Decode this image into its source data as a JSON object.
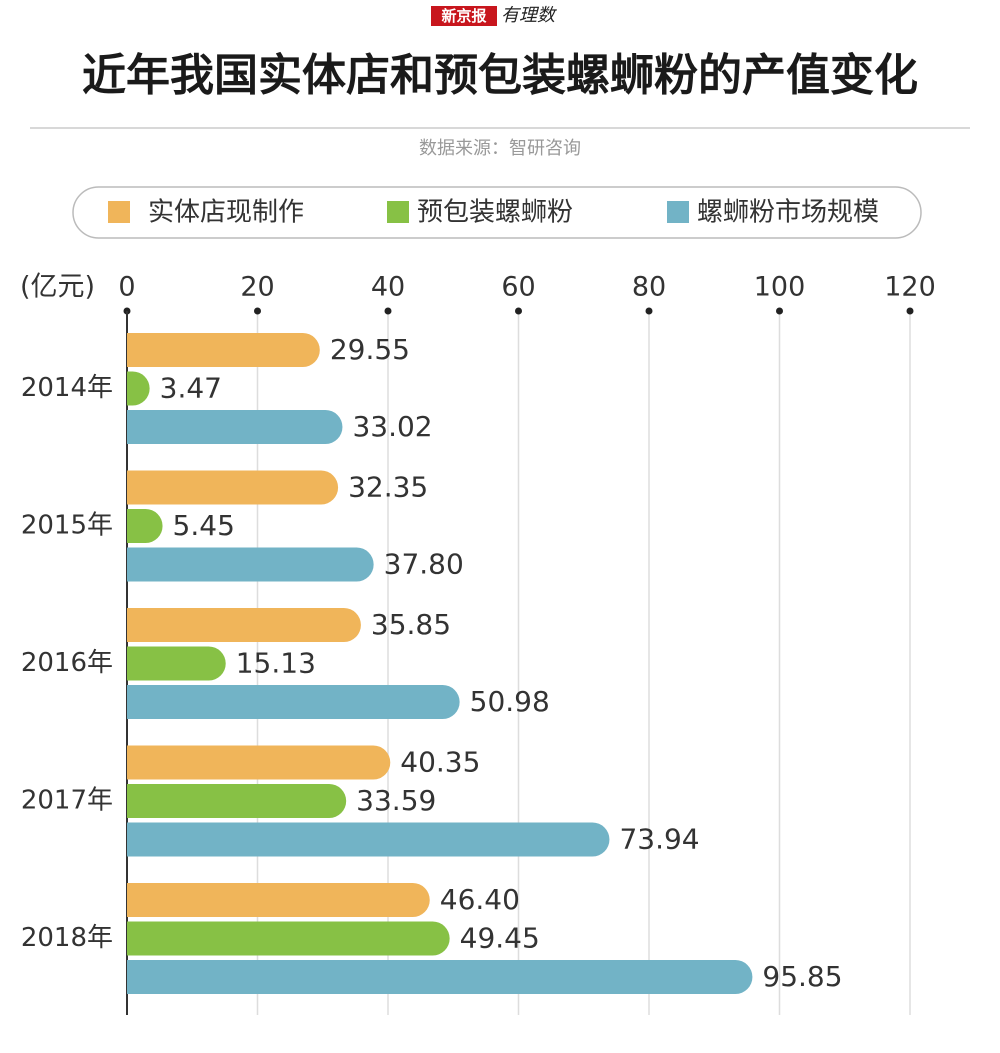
{
  "header": {
    "brand": "新京报",
    "column": "有理数"
  },
  "chart_data": {
    "type": "bar",
    "orientation": "horizontal",
    "title": "近年我国实体店和预包装螺蛳粉的产值变化",
    "source": "数据来源：智研咨询",
    "x_label": "(亿元)",
    "categories": [
      "2014年",
      "2015年",
      "2016年",
      "2017年",
      "2018年"
    ],
    "series": [
      {
        "name": "实体店现制作",
        "color": "#f0b55a",
        "values": [
          29.55,
          32.35,
          35.85,
          40.35,
          46.4
        ],
        "value_labels": [
          "29.55",
          "32.35",
          "35.85",
          "40.35",
          "46.40"
        ]
      },
      {
        "name": "预包装螺蛳粉",
        "color": "#87c145",
        "values": [
          3.47,
          5.45,
          15.13,
          33.59,
          49.45
        ],
        "value_labels": [
          "3.47",
          "5.45",
          "15.13",
          "33.59",
          "49.45"
        ]
      },
      {
        "name": "螺蛳粉市场规模",
        "color": "#72b3c6",
        "values": [
          33.02,
          37.8,
          50.98,
          73.94,
          95.85
        ],
        "value_labels": [
          "33.02",
          "37.80",
          "50.98",
          "73.94",
          "95.85"
        ]
      }
    ],
    "xlim": [
      0,
      120
    ],
    "xticks": [
      0,
      20,
      40,
      60,
      80,
      100,
      120
    ],
    "grid": true,
    "legend": "top"
  }
}
